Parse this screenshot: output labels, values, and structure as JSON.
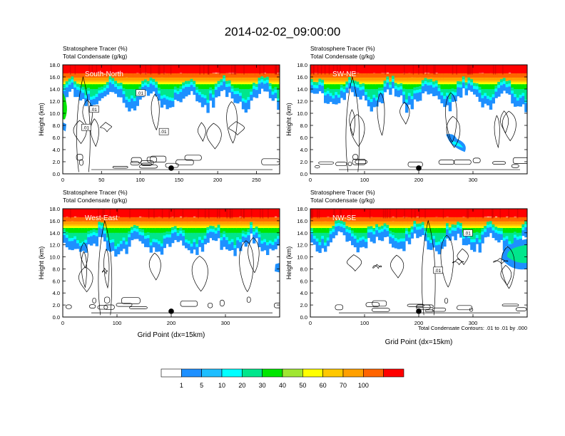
{
  "figure": {
    "title": "2014-02-02_09:00:00",
    "footnote": "Total Condensate Contours: .01 to .01 by .000"
  },
  "colorbar": {
    "levels": [
      "1",
      "5",
      "10",
      "20",
      "30",
      "40",
      "50",
      "60",
      "70",
      "100"
    ],
    "colors": [
      "#ffffff",
      "#1e90ff",
      "#1ebeff",
      "#00ffff",
      "#00e68c",
      "#00e600",
      "#a0e632",
      "#ffff00",
      "#ffc800",
      "#ffa000",
      "#ff6400",
      "#ff0000"
    ]
  },
  "chart_data": [
    {
      "type": "heatmap",
      "name": "South-North",
      "label_left": "Stratosphere Tracer   (%)",
      "label_left2": "Total Condensate   (g/kg)",
      "ylabel": "Height (km)",
      "xlabel": "",
      "xlim": [
        0,
        280
      ],
      "ylim": [
        0,
        18
      ],
      "xticks": [
        "0",
        "50",
        "100",
        "150",
        "200",
        "250"
      ],
      "yticks": [
        "0.0",
        "2.0",
        "4.0",
        "6.0",
        "8.0",
        "10.0",
        "12.0",
        "14.0",
        "16.0",
        "18.0"
      ],
      "contour_labels": [
        ".01",
        ".01",
        ".01",
        ".01"
      ],
      "marker_x": 140,
      "tracer_base_km": 13.5
    },
    {
      "type": "heatmap",
      "name": "SW-NE",
      "label_left": "Stratosphere Tracer   (%)",
      "label_left2": "Total Condensate   (g/kg)",
      "ylabel": "Height (km)",
      "xlabel": "",
      "xlim": [
        0,
        400
      ],
      "ylim": [
        0,
        18
      ],
      "xticks": [
        "0",
        "100",
        "200",
        "300"
      ],
      "yticks": [
        "0.0",
        "2.0",
        "4.0",
        "6.0",
        "8.0",
        "10.0",
        "12.0",
        "14.0",
        "16.0",
        "18.0"
      ],
      "contour_labels": [],
      "marker_x": 200,
      "tracer_base_km": 13.5
    },
    {
      "type": "heatmap",
      "name": "West-East",
      "label_left": "Stratosphere Tracer   (%)",
      "label_left2": "Total Condensate   (g/kg)",
      "ylabel": "Height (km)",
      "xlabel": "Grid Point (dx=15km)",
      "xlim": [
        0,
        400
      ],
      "ylim": [
        0,
        18
      ],
      "xticks": [
        "0",
        "100",
        "200",
        "300"
      ],
      "yticks": [
        "0.0",
        "2.0",
        "4.0",
        "6.0",
        "8.0",
        "10.0",
        "12.0",
        "14.0",
        "16.0",
        "18.0"
      ],
      "contour_labels": [],
      "marker_x": 200,
      "tracer_base_km": 13.0
    },
    {
      "type": "heatmap",
      "name": "NW-SE",
      "label_left": "Stratosphere Tracer   (%)",
      "label_left2": "Total Condensate   (g/kg)",
      "ylabel": "Height (km)",
      "xlabel": "Grid Point (dx=15km)",
      "xlim": [
        0,
        400
      ],
      "ylim": [
        0,
        18
      ],
      "xticks": [
        "0",
        "100",
        "200",
        "300"
      ],
      "yticks": [
        "0.0",
        "2.0",
        "4.0",
        "6.0",
        "8.0",
        "10.0",
        "12.0",
        "14.0",
        "16.0",
        "18.0"
      ],
      "contour_labels": [
        ".01",
        ".01"
      ],
      "marker_x": 200,
      "tracer_base_km": 13.5
    }
  ]
}
